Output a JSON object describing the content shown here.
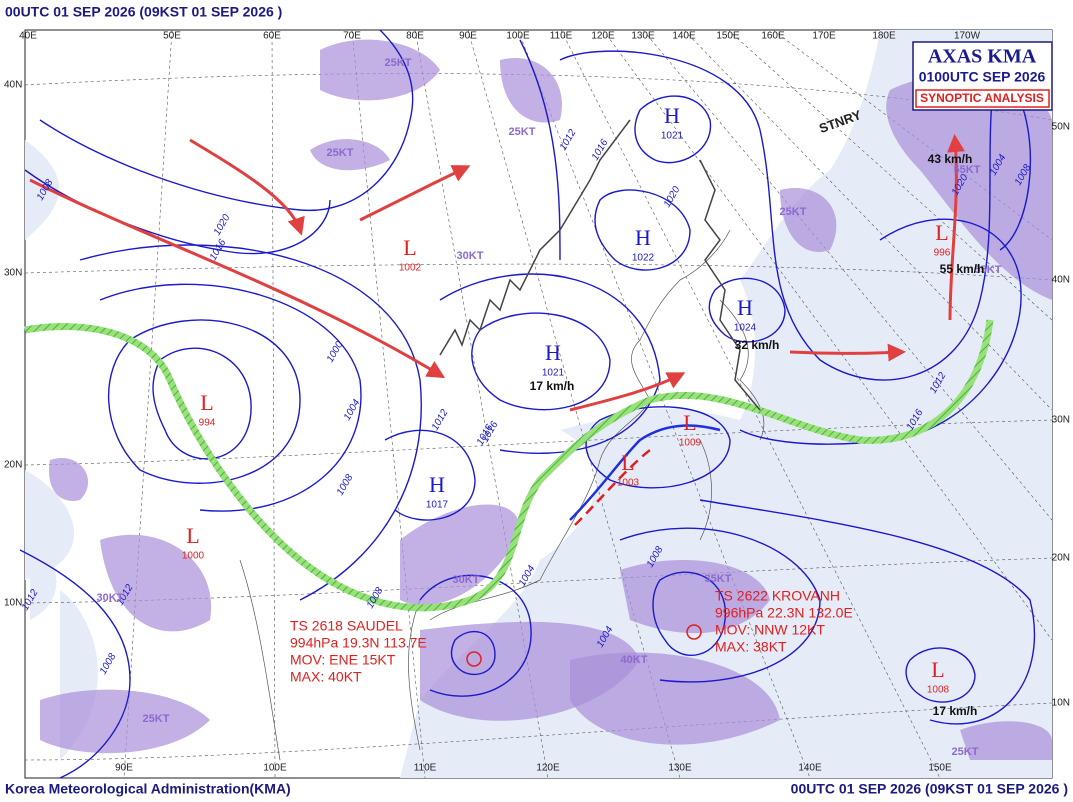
{
  "header": {
    "title": "00UTC 01 SEP 2026 (09KST 01 SEP 2026 )"
  },
  "legend": {
    "agency": "AXAS KMA",
    "time": "0100UTC SEP 2026",
    "product": "SYNOPTIC ANALYSIS"
  },
  "footer": {
    "left": "Korea Meteorological Administration(KMA)",
    "right": "00UTC 01 SEP 2026 (09KST 01 SEP 2026 )"
  },
  "longitudes_top": [
    "40E",
    "50E",
    "60E",
    "70E",
    "80E",
    "90E",
    "100E",
    "110E",
    "120E",
    "130E",
    "140E",
    "150E",
    "160E",
    "170E",
    "180E",
    "170W"
  ],
  "longitudes_bottom": [
    "90E",
    "100E",
    "110E",
    "120E",
    "130E",
    "140E",
    "150E"
  ],
  "latitudes_left": [
    "40N",
    "30N",
    "20N",
    "10N"
  ],
  "latitudes_right": [
    "50N",
    "40N",
    "30N",
    "20N",
    "10N"
  ],
  "systems": [
    {
      "symbol": "H",
      "pressure": "1021"
    },
    {
      "symbol": "H",
      "pressure": "1022"
    },
    {
      "symbol": "H",
      "pressure": "1024"
    },
    {
      "symbol": "H",
      "pressure": "1017"
    },
    {
      "symbol": "H",
      "pressure": "1021"
    },
    {
      "symbol": "L",
      "pressure": "994"
    },
    {
      "symbol": "L",
      "pressure": "1000"
    },
    {
      "symbol": "L",
      "pressure": "1008"
    },
    {
      "symbol": "L",
      "pressure": "996"
    },
    {
      "symbol": "L",
      "pressure": "1002"
    },
    {
      "symbol": "L",
      "pressure": "1009"
    },
    {
      "symbol": "L",
      "pressure": "1003"
    }
  ],
  "isobar_labels": [
    "1008",
    "1016",
    "1020",
    "1000",
    "1004",
    "1008",
    "1012",
    "1016",
    "1012",
    "1016",
    "1020",
    "1004",
    "1008",
    "1012",
    "1012",
    "1016",
    "1008",
    "1004",
    "1008",
    "1012",
    "1016",
    "1020",
    "1004",
    "1008"
  ],
  "wind_labels": [
    "25KT",
    "25KT",
    "30KT",
    "30KT",
    "25KT",
    "40KT",
    "35KT",
    "30KT",
    "25KT",
    "25KT",
    "55KT",
    "55KT",
    "25KT"
  ],
  "motions": [
    "17 km/h",
    "32 km/h",
    "43 km/h",
    "55 km/h",
    "17 km/h"
  ],
  "stationary": "STNRY",
  "storms": [
    {
      "name": "TS 2618 SAUDEL",
      "center": "994hPa 19.3N 113.7E",
      "movement": "MOV: ENE 15KT",
      "max": "MAX: 40KT"
    },
    {
      "name": "TS 2622 KROVANH",
      "center": "996hPa 22.3N 132.0E",
      "movement": "MOV: NNW 12KT",
      "max": "MAX: 38KT"
    }
  ]
}
